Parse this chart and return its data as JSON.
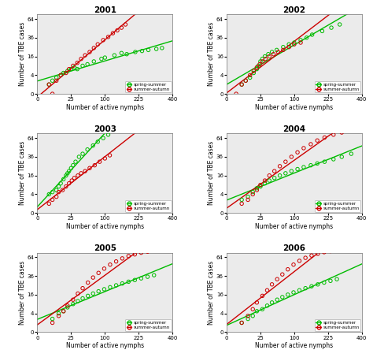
{
  "years": [
    "2001",
    "2002",
    "2003",
    "2004",
    "2005",
    "2006"
  ],
  "xlabel": "Number of active nymphs",
  "ylabel": "Number of TBE cases",
  "xlim": [
    0,
    400
  ],
  "ylim": [
    0,
    72
  ],
  "xticks": [
    0,
    25,
    100,
    225,
    400
  ],
  "yticks": [
    0,
    4,
    16,
    36,
    64
  ],
  "color_spring": "#00bb00",
  "color_autumn": "#cc0000",
  "background": "#ebebeb",
  "plots": [
    {
      "year": "2001",
      "spring_x": [
        3,
        5,
        8,
        12,
        15,
        20,
        25,
        30,
        35,
        45,
        55,
        70,
        90,
        100,
        130,
        155,
        175,
        210,
        240,
        270,
        310,
        340
      ],
      "spring_y": [
        1,
        2,
        3,
        4,
        5,
        6,
        7,
        8,
        7,
        9,
        10,
        12,
        14,
        15,
        17,
        19,
        18,
        20,
        21,
        22,
        23,
        24
      ],
      "autumn_x": [
        3,
        5,
        8,
        12,
        18,
        22,
        28,
        35,
        42,
        50,
        60,
        70,
        80,
        95,
        110,
        125,
        140,
        155,
        170
      ],
      "autumn_y": [
        1,
        0,
        2,
        4,
        5,
        7,
        9,
        11,
        14,
        17,
        20,
        24,
        28,
        33,
        37,
        42,
        46,
        50,
        55
      ],
      "spring_slope": 0.055,
      "spring_intercept": 3.0,
      "autumn_slope": 0.19,
      "autumn_intercept": 1.5
    },
    {
      "year": "2002",
      "spring_x": [
        5,
        8,
        12,
        16,
        20,
        22,
        25,
        28,
        32,
        38,
        45,
        55,
        70,
        85,
        100,
        120,
        140,
        160,
        200,
        240,
        280
      ],
      "spring_y": [
        1,
        2,
        3,
        5,
        7,
        9,
        12,
        14,
        16,
        18,
        20,
        22,
        25,
        28,
        30,
        33,
        36,
        40,
        45,
        50,
        55
      ],
      "autumn_x": [
        2,
        5,
        8,
        12,
        16,
        20,
        24,
        28,
        33,
        40,
        48,
        58,
        70,
        85,
        100,
        120
      ],
      "autumn_y": [
        0,
        1,
        2,
        4,
        6,
        8,
        10,
        12,
        14,
        16,
        18,
        20,
        22,
        25,
        28,
        30
      ],
      "spring_slope": 0.16,
      "spring_intercept": 1.0,
      "autumn_slope": 0.22,
      "autumn_intercept": 0.0
    },
    {
      "year": "2003",
      "spring_x": [
        3,
        5,
        8,
        10,
        12,
        15,
        18,
        20,
        22,
        25,
        28,
        32,
        38,
        45,
        55,
        68,
        80,
        95,
        110
      ],
      "spring_y": [
        4,
        5,
        6,
        8,
        10,
        13,
        16,
        18,
        20,
        23,
        26,
        30,
        36,
        40,
        46,
        52,
        58,
        64,
        70
      ],
      "autumn_x": [
        3,
        5,
        8,
        10,
        14,
        18,
        22,
        26,
        30,
        36,
        42,
        50,
        60,
        72,
        85,
        100,
        115
      ],
      "autumn_y": [
        1,
        2,
        3,
        5,
        6,
        8,
        10,
        12,
        14,
        16,
        18,
        20,
        23,
        26,
        30,
        34,
        38
      ],
      "spring_slope": 0.52,
      "spring_intercept": 2.0,
      "autumn_slope": 0.28,
      "autumn_intercept": 0.0
    },
    {
      "year": "2004",
      "spring_x": [
        5,
        10,
        15,
        20,
        25,
        32,
        40,
        50,
        62,
        76,
        92,
        110,
        130,
        155,
        180,
        210,
        250,
        290,
        340
      ],
      "spring_y": [
        2,
        3,
        5,
        7,
        8,
        10,
        12,
        14,
        16,
        18,
        20,
        22,
        24,
        26,
        28,
        30,
        33,
        36,
        40
      ],
      "autumn_x": [
        5,
        10,
        15,
        20,
        25,
        32,
        40,
        50,
        62,
        76,
        92,
        110,
        130,
        155,
        180,
        210,
        250,
        290,
        340
      ],
      "autumn_y": [
        1,
        2,
        4,
        6,
        9,
        12,
        16,
        20,
        25,
        30,
        36,
        42,
        48,
        54,
        60,
        65,
        70,
        74,
        78
      ],
      "spring_slope": 0.09,
      "spring_intercept": 2.0,
      "autumn_slope": 0.21,
      "autumn_intercept": 0.0
    },
    {
      "year": "2005",
      "spring_x": [
        5,
        10,
        15,
        20,
        28,
        36,
        45,
        56,
        68,
        82,
        98,
        116,
        136,
        158,
        182,
        208,
        236,
        266,
        298
      ],
      "spring_y": [
        2,
        4,
        5,
        7,
        9,
        11,
        13,
        15,
        17,
        19,
        21,
        23,
        25,
        27,
        29,
        31,
        33,
        35,
        37
      ],
      "autumn_x": [
        5,
        10,
        15,
        20,
        28,
        36,
        45,
        56,
        68,
        82,
        98,
        116,
        136,
        158,
        182,
        208,
        236,
        266,
        298
      ],
      "autumn_y": [
        1,
        3,
        5,
        8,
        12,
        17,
        22,
        28,
        34,
        40,
        46,
        52,
        57,
        62,
        66,
        69,
        72,
        74,
        76
      ],
      "spring_slope": 0.1,
      "spring_intercept": 2.0,
      "autumn_slope": 0.22,
      "autumn_intercept": 0.0
    },
    {
      "year": "2006",
      "spring_x": [
        5,
        10,
        15,
        20,
        28,
        36,
        45,
        56,
        68,
        82,
        98,
        116,
        136,
        158,
        182,
        208,
        236,
        266
      ],
      "spring_y": [
        1,
        2,
        3,
        5,
        6,
        8,
        10,
        12,
        14,
        16,
        18,
        20,
        22,
        24,
        26,
        28,
        30,
        32
      ],
      "autumn_x": [
        5,
        10,
        15,
        20,
        28,
        36,
        45,
        56,
        68,
        82,
        98,
        116,
        136,
        158,
        182,
        208,
        236,
        266
      ],
      "autumn_y": [
        1,
        3,
        6,
        10,
        15,
        20,
        26,
        32,
        38,
        45,
        52,
        58,
        63,
        67,
        70,
        73,
        75,
        77
      ],
      "spring_slope": 0.1,
      "spring_intercept": 0.5,
      "autumn_slope": 0.25,
      "autumn_intercept": 0.0
    }
  ]
}
